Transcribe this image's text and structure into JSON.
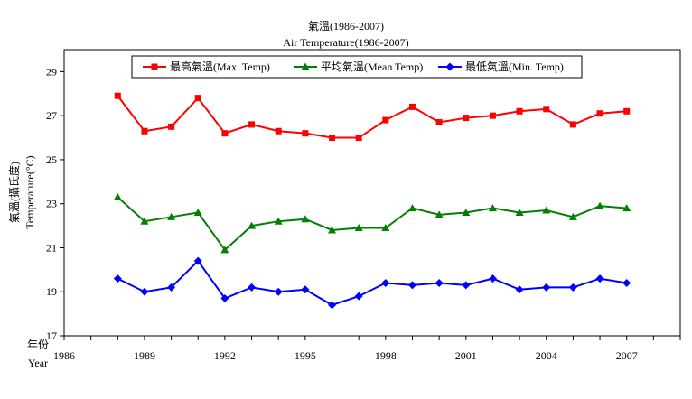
{
  "chart_data": {
    "type": "line",
    "title": "氣溫(1986-2007)",
    "subtitle": "Air Temperature(1986-2007)",
    "ylabel_zh": "氣溫(攝氏度)",
    "ylabel_en": "Temperature(°C)",
    "xlabel_zh": "年份",
    "xlabel_en": "Year",
    "xlim": [
      1986,
      2009
    ],
    "ylim": [
      17,
      30
    ],
    "x_ticks": [
      1986,
      1989,
      1992,
      1995,
      1998,
      2001,
      2004,
      2007
    ],
    "y_ticks": [
      17,
      19,
      21,
      23,
      25,
      27,
      29
    ],
    "grid": false,
    "legend_position": "top",
    "x": [
      1988,
      1989,
      1990,
      1991,
      1992,
      1993,
      1994,
      1995,
      1996,
      1997,
      1998,
      1999,
      2000,
      2001,
      2002,
      2003,
      2004,
      2005,
      2006,
      2007
    ],
    "series": [
      {
        "name": "最高氣溫(Max. Temp)",
        "color": "#ff0000",
        "marker": "square",
        "values": [
          27.9,
          26.3,
          26.5,
          27.8,
          26.2,
          26.6,
          26.3,
          26.2,
          26.0,
          26.0,
          26.8,
          27.4,
          26.7,
          26.9,
          27.0,
          27.2,
          27.3,
          26.6,
          27.1,
          27.2
        ]
      },
      {
        "name": "平均氣溫(Mean Temp)",
        "color": "#008000",
        "marker": "triangle",
        "values": [
          23.3,
          22.2,
          22.4,
          22.6,
          20.9,
          22.0,
          22.2,
          22.3,
          21.8,
          21.9,
          21.9,
          22.8,
          22.5,
          22.6,
          22.8,
          22.6,
          22.7,
          22.4,
          22.9,
          22.8
        ]
      },
      {
        "name": "最低氣溫(Min. Temp)",
        "color": "#0000ff",
        "marker": "diamond",
        "values": [
          19.6,
          19.0,
          19.2,
          20.4,
          18.7,
          19.2,
          19.0,
          19.1,
          18.4,
          18.8,
          19.4,
          19.3,
          19.4,
          19.3,
          19.6,
          19.1,
          19.2,
          19.2,
          19.6,
          19.4
        ]
      }
    ]
  }
}
